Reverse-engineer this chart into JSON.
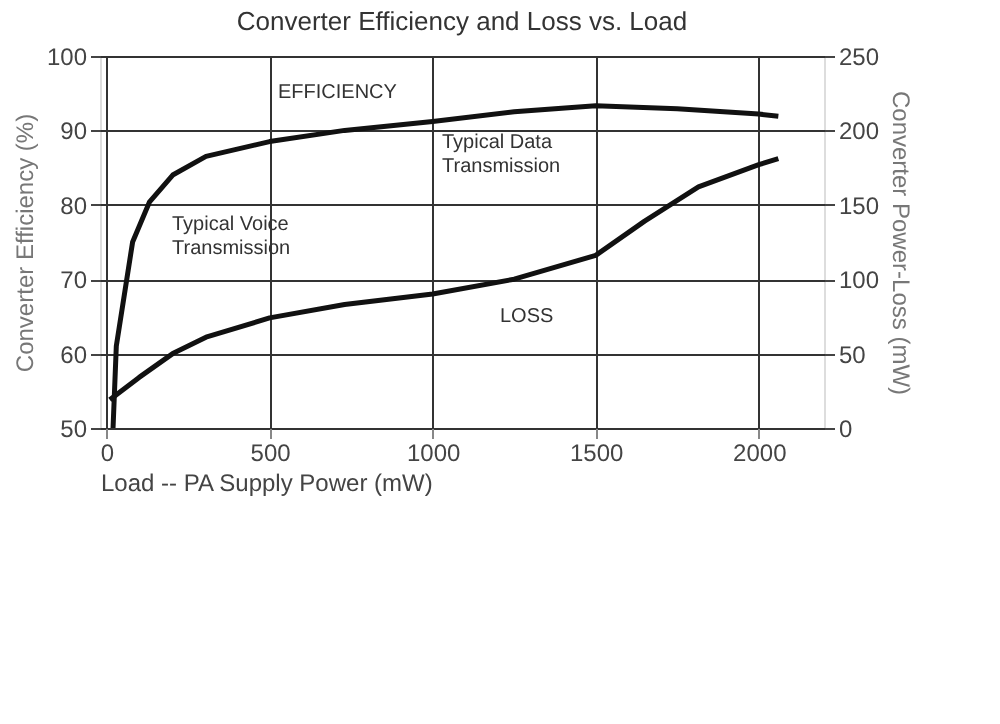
{
  "chart_data": {
    "type": "line",
    "title": "Converter Efficiency and Loss vs. Load",
    "xlabel": "Load  -- PA Supply Power (mW)",
    "ylabel": "Converter Efficiency (%)",
    "y2label": "Converter Power-Loss (mW)",
    "xlim": [
      -20,
      2200
    ],
    "xticks": [
      0,
      500,
      1000,
      1500,
      2000
    ],
    "ylim": [
      50,
      100
    ],
    "yticks": [
      50,
      60,
      70,
      80,
      90,
      100
    ],
    "y2lim": [
      0,
      250
    ],
    "y2ticks": [
      0,
      50,
      100,
      150,
      200,
      250
    ],
    "grid": true,
    "line_style": "solid",
    "marker": "none",
    "series": [
      {
        "color": "#111111",
        "x": [
          20,
          30,
          80,
          132,
          203,
          305,
          500,
          730,
          1000,
          1250,
          1500,
          1750,
          2000,
          2060
        ],
        "values": [
          50,
          61,
          75,
          80.4,
          84,
          86.5,
          88.5,
          90,
          91.2,
          92.5,
          93.3,
          92.9,
          92.2,
          91.9
        ]
      },
      {
        "color": "#111111",
        "axis": "y2",
        "x": [
          10,
          100,
          203,
          305,
          500,
          730,
          1000,
          1250,
          1500,
          1650,
          1815,
          2000,
          2060
        ],
        "values": [
          19,
          34,
          50,
          61,
          74,
          83,
          90,
          100,
          116,
          139,
          162,
          177,
          181
        ]
      }
    ],
    "annotations": [
      "EFFICIENCY",
      "Typical Data Transmission",
      "Typical Voice Transmission",
      "LOSS"
    ]
  }
}
